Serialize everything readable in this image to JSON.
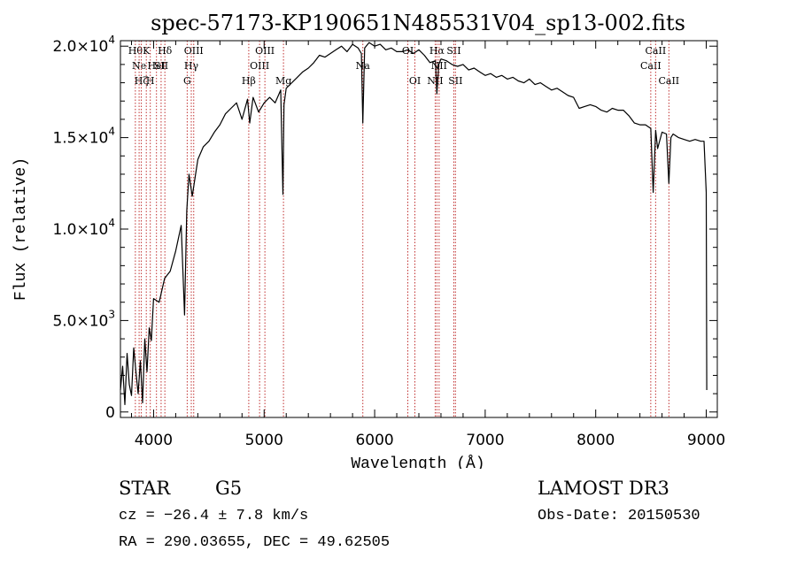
{
  "chart_data": {
    "type": "line",
    "title": "spec-57173-KP190651N485531V04_sp13-002.fits",
    "xlabel": "Wavelength (Å)",
    "ylabel": "Flux (relative)",
    "xlim": [
      3700,
      9100
    ],
    "ylim": [
      -300,
      20300
    ],
    "grid": false,
    "x_ticks": [
      {
        "value": 4000,
        "label": "4000"
      },
      {
        "value": 5000,
        "label": "5000"
      },
      {
        "value": 6000,
        "label": "6000"
      },
      {
        "value": 7000,
        "label": "7000"
      },
      {
        "value": 8000,
        "label": "8000"
      },
      {
        "value": 9000,
        "label": "9000"
      }
    ],
    "y_ticks": [
      {
        "value": 0,
        "mantissa": "0",
        "exponent": ""
      },
      {
        "value": 5000,
        "mantissa": "5.0×10",
        "exponent": "3"
      },
      {
        "value": 10000,
        "mantissa": "1.0×10",
        "exponent": "4"
      },
      {
        "value": 15000,
        "mantissa": "1.5×10",
        "exponent": "4"
      },
      {
        "value": 20000,
        "mantissa": "2.0×10",
        "exponent": "4"
      }
    ],
    "series": [
      {
        "name": "flux",
        "x": [
          3700,
          3720,
          3740,
          3760,
          3780,
          3800,
          3820,
          3840,
          3860,
          3880,
          3900,
          3920,
          3940,
          3960,
          3980,
          4000,
          4050,
          4100,
          4150,
          4200,
          4250,
          4280,
          4300,
          4320,
          4350,
          4400,
          4450,
          4500,
          4550,
          4600,
          4650,
          4700,
          4750,
          4800,
          4850,
          4870,
          4900,
          4950,
          5000,
          5050,
          5100,
          5150,
          5170,
          5180,
          5200,
          5250,
          5300,
          5350,
          5400,
          5450,
          5500,
          5550,
          5600,
          5650,
          5700,
          5750,
          5800,
          5850,
          5880,
          5893,
          5910,
          5950,
          6000,
          6050,
          6100,
          6150,
          6200,
          6250,
          6300,
          6350,
          6400,
          6450,
          6500,
          6550,
          6563,
          6580,
          6600,
          6650,
          6700,
          6750,
          6800,
          6850,
          6900,
          6950,
          7000,
          7050,
          7100,
          7150,
          7200,
          7250,
          7300,
          7350,
          7400,
          7450,
          7500,
          7550,
          7600,
          7650,
          7700,
          7750,
          7800,
          7850,
          7900,
          7950,
          8000,
          8050,
          8100,
          8150,
          8200,
          8250,
          8300,
          8350,
          8400,
          8450,
          8498,
          8520,
          8542,
          8560,
          8600,
          8640,
          8662,
          8680,
          8700,
          8750,
          8800,
          8850,
          8900,
          8950,
          8980,
          9000,
          9005
        ],
        "y": [
          1200,
          2500,
          400,
          3200,
          1500,
          900,
          3500,
          2200,
          1000,
          2800,
          500,
          4000,
          2200,
          4600,
          3900,
          6200,
          6000,
          7300,
          7700,
          8800,
          10200,
          5300,
          11000,
          13000,
          11800,
          13800,
          14500,
          14800,
          15300,
          15700,
          16300,
          16600,
          16900,
          16000,
          17100,
          15800,
          17200,
          16400,
          16900,
          17200,
          16900,
          17600,
          11900,
          16800,
          17700,
          18000,
          18300,
          18600,
          18800,
          19100,
          19500,
          19400,
          19600,
          19800,
          20000,
          19700,
          20100,
          19900,
          19600,
          15800,
          19900,
          20200,
          20000,
          20100,
          19800,
          19900,
          19700,
          19700,
          19800,
          19600,
          19800,
          19500,
          19100,
          19200,
          17400,
          19000,
          19300,
          19200,
          19000,
          18900,
          19000,
          18700,
          18800,
          18600,
          18400,
          18500,
          18300,
          18400,
          18200,
          18300,
          18100,
          18000,
          18200,
          17900,
          18000,
          17800,
          17600,
          17700,
          17500,
          17300,
          17200,
          16600,
          16700,
          16800,
          16700,
          16500,
          16400,
          16600,
          16500,
          16500,
          16200,
          15800,
          15700,
          15700,
          15500,
          12000,
          15400,
          14400,
          15300,
          15200,
          12500,
          15000,
          15200,
          15000,
          14900,
          14800,
          14900,
          14800,
          14800,
          12000,
          1200
        ]
      }
    ],
    "lines_marked": [
      {
        "wave": 3835,
        "label": "Hθ",
        "tier": 0
      },
      {
        "wave": 3869,
        "label": "Ne",
        "tier": 1
      },
      {
        "wave": 3889,
        "label": "Hζ",
        "tier": 2
      },
      {
        "wave": 3934,
        "label": "K",
        "tier": 0
      },
      {
        "wave": 3970,
        "label": "H",
        "tier": 2
      },
      {
        "wave": 4026,
        "label": "HeI",
        "tier": 1
      },
      {
        "wave": 4068,
        "label": "SII",
        "tier": 1
      },
      {
        "wave": 4102,
        "label": "Hδ",
        "tier": 0
      },
      {
        "wave": 4304,
        "label": "G",
        "tier": 2
      },
      {
        "wave": 4341,
        "label": "Hγ",
        "tier": 1
      },
      {
        "wave": 4363,
        "label": "OIII",
        "tier": 0
      },
      {
        "wave": 4861,
        "label": "Hβ",
        "tier": 2
      },
      {
        "wave": 4959,
        "label": "OIII",
        "tier": 1
      },
      {
        "wave": 5007,
        "label": "OIII",
        "tier": 0
      },
      {
        "wave": 5175,
        "label": "Mg",
        "tier": 2
      },
      {
        "wave": 5893,
        "label": "Na",
        "tier": 1
      },
      {
        "wave": 6300,
        "label": "OI",
        "tier": 0
      },
      {
        "wave": 6364,
        "label": "OI",
        "tier": 2
      },
      {
        "wave": 6548,
        "label": "NII",
        "tier": 2
      },
      {
        "wave": 6563,
        "label": "Hα",
        "tier": 0
      },
      {
        "wave": 6583,
        "label": "NII",
        "tier": 1
      },
      {
        "wave": 6716,
        "label": "SII",
        "tier": 0
      },
      {
        "wave": 6731,
        "label": "SII",
        "tier": 2
      },
      {
        "wave": 8498,
        "label": "CaII",
        "tier": 1
      },
      {
        "wave": 8542,
        "label": "CaII",
        "tier": 0
      },
      {
        "wave": 8662,
        "label": "CaII",
        "tier": 2
      }
    ]
  },
  "info": {
    "object_class": "STAR",
    "subclass": "G5",
    "survey": "LAMOST DR3",
    "redshift": "cz = −26.4 ± 7.8 km/s",
    "obs_date": "Obs-Date: 20150530",
    "radec": "RA = 290.03655, DEC =  49.62505"
  },
  "colors": {
    "line_marker": "#c03030",
    "spectrum": "#000000",
    "axes": "#000000"
  }
}
